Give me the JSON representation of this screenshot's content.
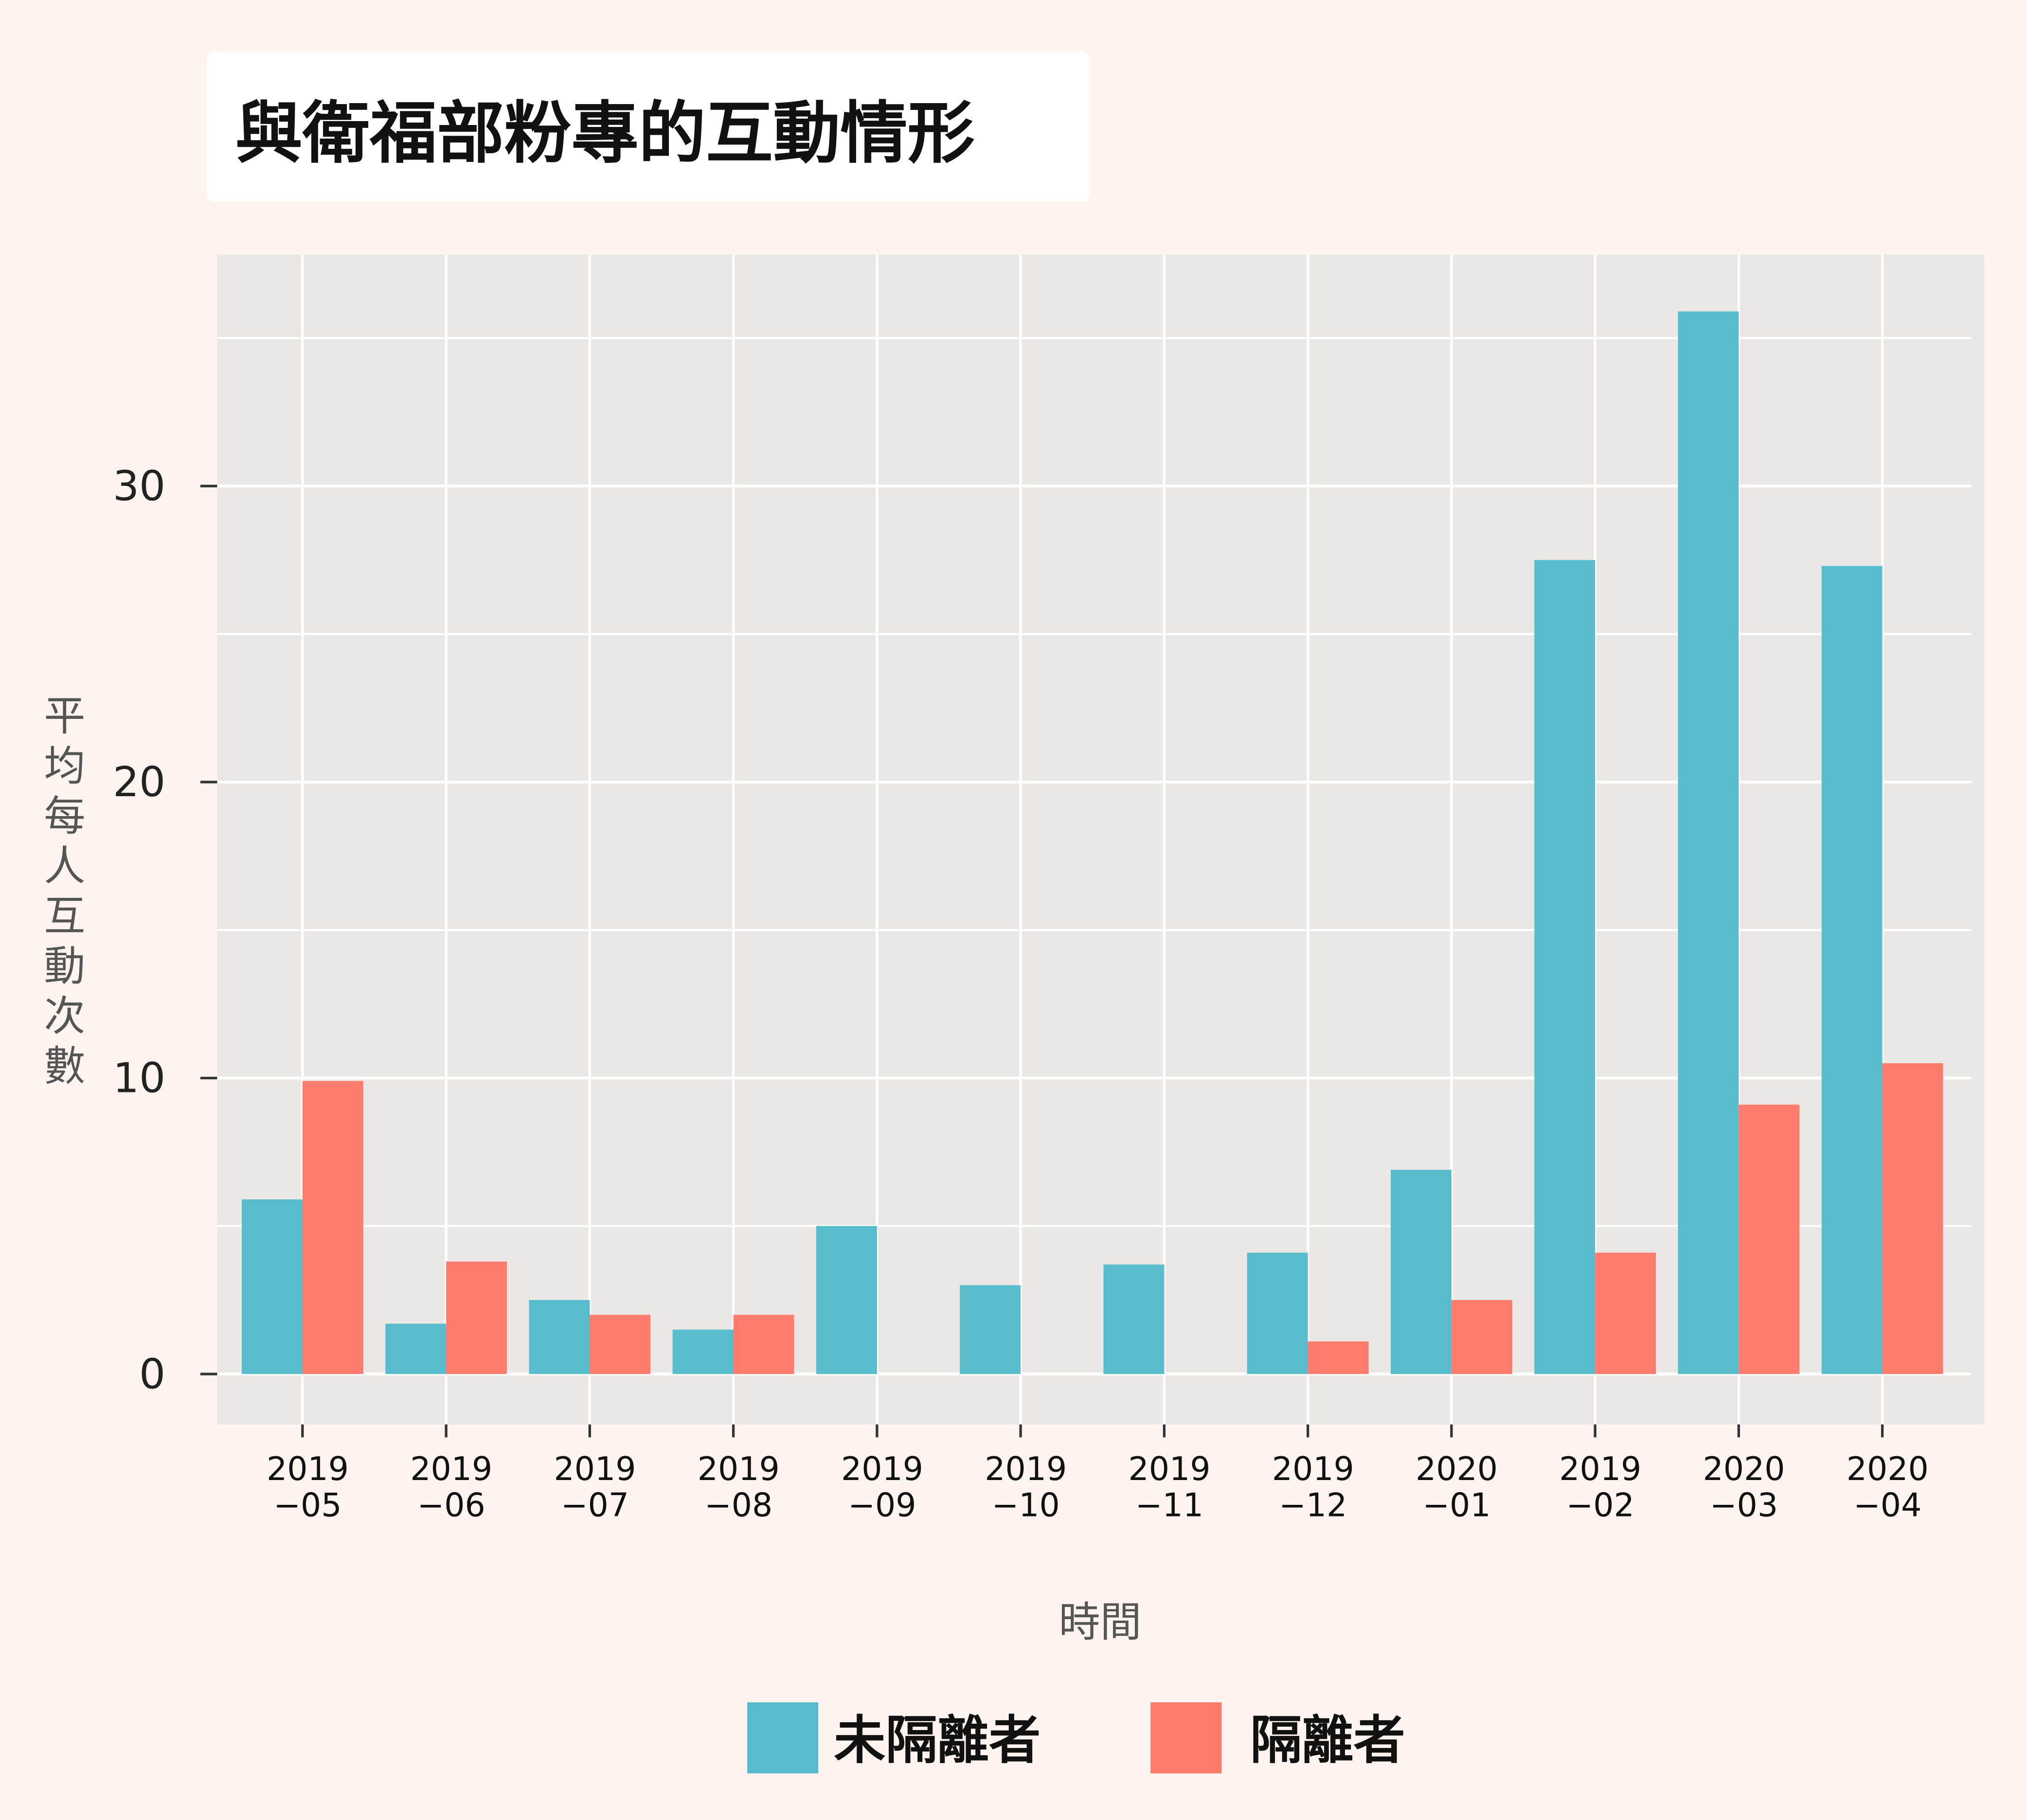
{
  "chart_data": {
    "type": "bar",
    "title": "與衛福部粉專的互動情形",
    "xlabel": "時間",
    "ylabel": "平均每人互動次數",
    "categories": [
      [
        "2019",
        "−05"
      ],
      [
        "2019",
        "−06"
      ],
      [
        "2019",
        "−07"
      ],
      [
        "2019",
        "−08"
      ],
      [
        "2019",
        "−09"
      ],
      [
        "2019",
        "−10"
      ],
      [
        "2019",
        "−11"
      ],
      [
        "2019",
        "−12"
      ],
      [
        "2020",
        "−01"
      ],
      [
        "2019",
        "−02"
      ],
      [
        "2020",
        "−03"
      ],
      [
        "2020",
        "−04"
      ]
    ],
    "series": [
      {
        "name": "未隔離者",
        "color": "#58bccc",
        "values": [
          5.9,
          1.7,
          2.5,
          1.5,
          5.0,
          3.0,
          3.7,
          4.1,
          6.9,
          27.5,
          35.9,
          27.3
        ]
      },
      {
        "name": "隔離者",
        "color": "#fd7b6d",
        "values": [
          9.9,
          3.8,
          2.0,
          2.0,
          0,
          0,
          0,
          1.1,
          2.5,
          4.1,
          9.1,
          10.5
        ]
      }
    ],
    "yticks": [
      "0",
      "10",
      "20",
      "30"
    ],
    "ylim": [
      -1.7,
      37.6
    ],
    "grid": true,
    "legend": "bottom",
    "colors": {
      "background": "#fdf4ef",
      "panel": "#ebe7e5",
      "grid": "#ffffff"
    }
  }
}
